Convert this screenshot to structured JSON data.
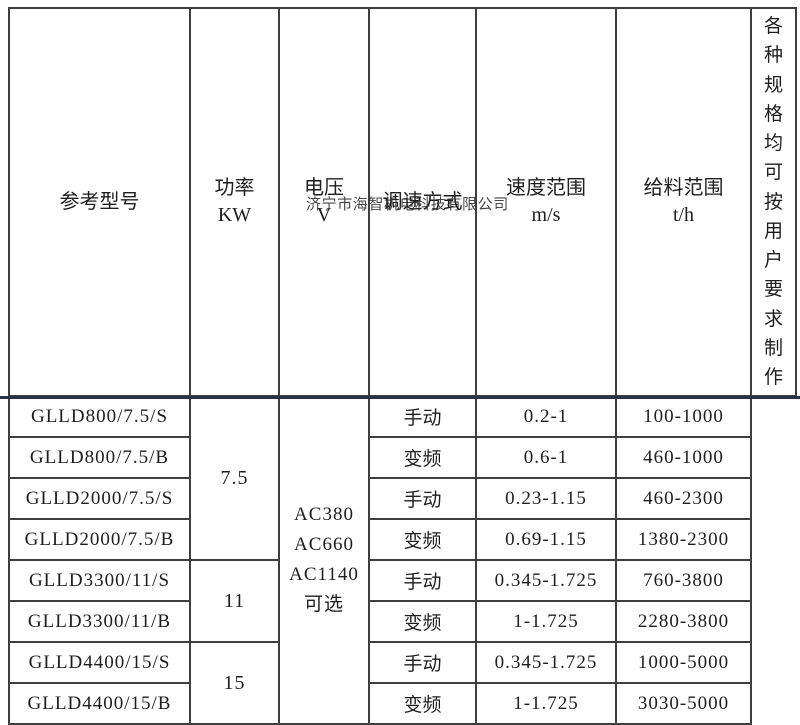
{
  "page": {
    "watermark": "济宁市海智机电科技有限公司"
  },
  "table": {
    "header": {
      "model": "参考型号",
      "power_label": "功率",
      "power_unit": "KW",
      "voltage_label": "电压",
      "voltage_unit": "V",
      "speed_mode": "调速方式",
      "speed_range_label": "速度范围",
      "speed_range_unit": "m/s",
      "feed_range_label": "给料范围",
      "feed_range_unit": "t/h"
    },
    "side_note": "各种规格均可按用户要求制作",
    "voltage_cell": [
      "AC380",
      "AC660",
      "AC1140",
      "可选"
    ],
    "power_groups": [
      {
        "value": "7.5",
        "rows": 4
      },
      {
        "value": "11",
        "rows": 2
      },
      {
        "value": "15",
        "rows": 2
      }
    ],
    "rows": [
      {
        "model": "GLLD800/7.5/S",
        "speed_mode": "手动",
        "speed_range": "0.2-1",
        "feed_range": "100-1000"
      },
      {
        "model": "GLLD800/7.5/B",
        "speed_mode": "变频",
        "speed_range": "0.6-1",
        "feed_range": "460-1000"
      },
      {
        "model": "GLLD2000/7.5/S",
        "speed_mode": "手动",
        "speed_range": "0.23-1.15",
        "feed_range": "460-2300"
      },
      {
        "model": "GLLD2000/7.5/B",
        "speed_mode": "变频",
        "speed_range": "0.69-1.15",
        "feed_range": "1380-2300"
      },
      {
        "model": "GLLD3300/11/S",
        "speed_mode": "手动",
        "speed_range": "0.345-1.725",
        "feed_range": "760-3800"
      },
      {
        "model": "GLLD3300/11/B",
        "speed_mode": "变频",
        "speed_range": "1-1.725",
        "feed_range": "2280-3800"
      },
      {
        "model": "GLLD4400/15/S",
        "speed_mode": "手动",
        "speed_range": "0.345-1.725",
        "feed_range": "1000-5000"
      },
      {
        "model": "GLLD4400/15/B",
        "speed_mode": "变频",
        "speed_range": "1-1.725",
        "feed_range": "3030-5000"
      }
    ]
  }
}
